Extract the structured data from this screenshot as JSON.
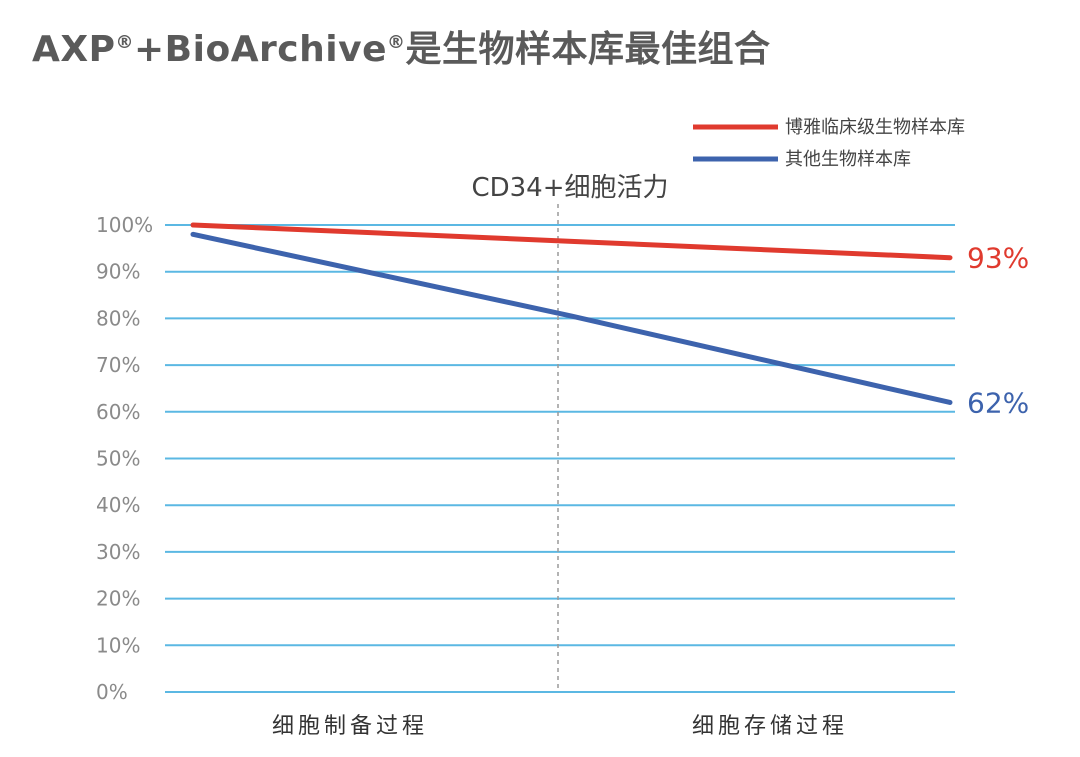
{
  "title": {
    "prefix": "AXP",
    "reg1": "®",
    "middle": "+BioArchive",
    "reg2": "®",
    "suffix": "是生物样本库最佳组合"
  },
  "chart_data": {
    "type": "line",
    "subtitle": "CD34+细胞活力",
    "categories": [
      "细胞制备过程",
      "细胞存储过程"
    ],
    "ylim": [
      0,
      100
    ],
    "y_ticks": [
      "0%",
      "10%",
      "20%",
      "30%",
      "40%",
      "50%",
      "60%",
      "70%",
      "80%",
      "90%",
      "100%"
    ],
    "grid": true,
    "legend_position": "top-right",
    "series": [
      {
        "name": "博雅临床级生物样本库",
        "color": "#e03a2e",
        "points": [
          [
            0,
            100
          ],
          [
            1,
            96.5
          ],
          [
            2,
            93
          ]
        ],
        "end_label": "93%"
      },
      {
        "name": "其他生物样本库",
        "color": "#3d63ad",
        "points": [
          [
            0,
            98
          ],
          [
            1,
            80.5
          ],
          [
            2,
            62
          ]
        ],
        "end_label": "62%"
      }
    ]
  }
}
